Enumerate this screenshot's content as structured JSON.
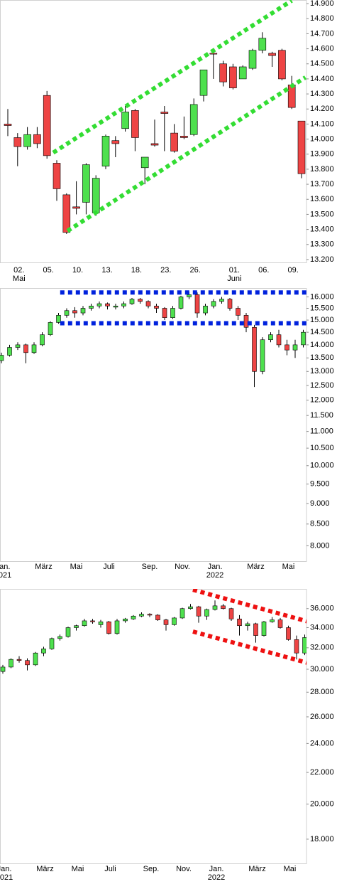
{
  "chart_data": [
    {
      "type": "candlestick",
      "log": false,
      "up_color": "#4ee04e",
      "down_color": "#ee4444",
      "categories": [
        null,
        "02.",
        null,
        null,
        "05.",
        null,
        null,
        "10.",
        null,
        null,
        "13.",
        null,
        null,
        "18.",
        null,
        null,
        "23.",
        null,
        null,
        "26.",
        null,
        null,
        null,
        "01.",
        null,
        null,
        "06.",
        null,
        null,
        "09.",
        null
      ],
      "sublabels": [
        {
          "index": 1,
          "label": "Mai"
        },
        {
          "index": 23,
          "label": "Juni"
        }
      ],
      "open": [
        14100,
        14010,
        13950,
        14030,
        14290,
        13840,
        13630,
        13550,
        13580,
        13510,
        13820,
        13990,
        14070,
        14190,
        13810,
        13970,
        14180,
        14040,
        14020,
        14030,
        14290,
        14570,
        14500,
        14480,
        14400,
        14470,
        14590,
        14570,
        14590,
        14360,
        14120
      ],
      "high": [
        14200,
        14040,
        14080,
        14080,
        14320,
        13860,
        13640,
        13720,
        13840,
        13760,
        14030,
        14020,
        14220,
        14200,
        13880,
        14130,
        14220,
        14100,
        14150,
        14270,
        14460,
        14580,
        14520,
        14500,
        14490,
        14600,
        14710,
        14580,
        14600,
        14420,
        14120
      ],
      "low": [
        14020,
        13820,
        13930,
        13940,
        13870,
        13590,
        13370,
        13500,
        13500,
        13490,
        13800,
        13880,
        14050,
        13920,
        13700,
        13950,
        13920,
        13910,
        14000,
        14020,
        14250,
        14400,
        14350,
        14330,
        14400,
        14460,
        14570,
        14480,
        14390,
        14200,
        13740
      ],
      "close": [
        14090,
        13950,
        14030,
        13970,
        13890,
        13670,
        13380,
        13540,
        13830,
        13740,
        14020,
        13970,
        14180,
        14010,
        13880,
        13960,
        14170,
        13920,
        14010,
        14230,
        14460,
        14565,
        14380,
        14340,
        14480,
        14590,
        14670,
        14555,
        14400,
        14210,
        13770
      ],
      "ylim": [
        13176,
        14924
      ],
      "yticks": [
        {
          "value": 13200,
          "label": "13.200"
        },
        {
          "value": 13300,
          "label": "13.300"
        },
        {
          "value": 13400,
          "label": "13.400"
        },
        {
          "value": 13500,
          "label": "13.500"
        },
        {
          "value": 13600,
          "label": "13.600"
        },
        {
          "value": 13700,
          "label": "13.700"
        },
        {
          "value": 13800,
          "label": "13.800"
        },
        {
          "value": 13900,
          "label": "13.900"
        },
        {
          "value": 14000,
          "label": "14.000"
        },
        {
          "value": 14100,
          "label": "14.100"
        },
        {
          "value": 14200,
          "label": "14.200"
        },
        {
          "value": 14300,
          "label": "14.300"
        },
        {
          "value": 14400,
          "label": "14.400"
        },
        {
          "value": 14500,
          "label": "14.500"
        },
        {
          "value": 14600,
          "label": "14.600"
        },
        {
          "value": 14700,
          "label": "14.700"
        },
        {
          "value": 14800,
          "label": "14.800"
        },
        {
          "value": 14900,
          "label": "14.900"
        }
      ],
      "channel": {
        "color": "#33dd33",
        "lines": [
          {
            "x": [
              4.64,
              29.0
            ],
            "y": [
              13910,
              14920
            ]
          },
          {
            "x": [
              6.1,
              30.4
            ],
            "y": [
              13390,
              14410
            ]
          }
        ]
      }
    },
    {
      "type": "candlestick",
      "log": true,
      "up_color": "#4ee04e",
      "down_color": "#ee4444",
      "categories": [
        "Jan.",
        null,
        null,
        null,
        null,
        "März",
        null,
        null,
        null,
        "Mai",
        null,
        null,
        null,
        "Juli",
        null,
        null,
        null,
        null,
        "Sep.",
        null,
        null,
        null,
        "Nov.",
        null,
        null,
        null,
        "Jan.",
        null,
        null,
        null,
        null,
        "März",
        null,
        null,
        null,
        "Mai",
        null,
        null
      ],
      "sublabels": [
        {
          "index": 0,
          "label": "2021"
        },
        {
          "index": 26,
          "label": "2022"
        }
      ],
      "open": [
        13400,
        13600,
        13900,
        14000,
        13700,
        14000,
        14400,
        14900,
        15200,
        15400,
        15300,
        15500,
        15600,
        15700,
        15550,
        15600,
        15700,
        15900,
        15800,
        15600,
        15500,
        15100,
        15500,
        16000,
        16100,
        15300,
        15600,
        15800,
        15900,
        15500,
        15200,
        14700,
        13000,
        14200,
        14400,
        14000,
        13800,
        14000
      ],
      "high": [
        13700,
        14000,
        14100,
        14050,
        14100,
        14500,
        14950,
        15300,
        15500,
        15550,
        15600,
        15700,
        15800,
        15750,
        15700,
        15800,
        15950,
        15950,
        15850,
        15700,
        15550,
        15600,
        16050,
        16200,
        16200,
        15700,
        15900,
        16000,
        15950,
        15600,
        15300,
        14800,
        14300,
        14500,
        14600,
        14200,
        14200,
        14600
      ],
      "low": [
        13300,
        13550,
        13800,
        13300,
        13650,
        13950,
        14350,
        14850,
        15100,
        15100,
        15200,
        15400,
        15500,
        15450,
        15450,
        15500,
        15650,
        15700,
        15500,
        15300,
        15000,
        15050,
        15450,
        15900,
        15100,
        15200,
        15500,
        15700,
        15400,
        15000,
        14500,
        12450,
        12900,
        14100,
        13900,
        13600,
        13500,
        13900
      ],
      "close": [
        13600,
        13900,
        14000,
        13700,
        14000,
        14400,
        14900,
        15200,
        15400,
        15300,
        15500,
        15600,
        15700,
        15600,
        15600,
        15700,
        15900,
        15800,
        15600,
        15500,
        15100,
        15500,
        16000,
        16100,
        15300,
        15600,
        15800,
        15900,
        15500,
        15200,
        14700,
        13000,
        14200,
        14400,
        14000,
        13800,
        14000,
        14500
      ],
      "ylim": [
        7650,
        16400
      ],
      "yticks": [
        {
          "value": 8000,
          "label": "8.000"
        },
        {
          "value": 8500,
          "label": "8.500"
        },
        {
          "value": 9000,
          "label": "9.000"
        },
        {
          "value": 9500,
          "label": "9.500"
        },
        {
          "value": 10000,
          "label": "10.000"
        },
        {
          "value": 10500,
          "label": "10.500"
        },
        {
          "value": 11000,
          "label": "11.000"
        },
        {
          "value": 11500,
          "label": "11.500"
        },
        {
          "value": 12000,
          "label": "12.000"
        },
        {
          "value": 12500,
          "label": "12.500"
        },
        {
          "value": 13000,
          "label": "13.000"
        },
        {
          "value": 13500,
          "label": "13.500"
        },
        {
          "value": 14000,
          "label": "14.000"
        },
        {
          "value": 14500,
          "label": "14.500"
        },
        {
          "value": 15000,
          "label": "15.000"
        },
        {
          "value": 15500,
          "label": "15.500"
        },
        {
          "value": 16000,
          "label": "16.000"
        }
      ],
      "channel": {
        "color": "#0022dd",
        "lines": [
          {
            "x": [
              7.2,
              37.4
            ],
            "y": [
              16200,
              16200
            ]
          },
          {
            "x": [
              7.2,
              37.4
            ],
            "y": [
              14870,
              14870
            ]
          }
        ]
      }
    },
    {
      "type": "candlestick",
      "log": true,
      "up_color": "#4ee04e",
      "down_color": "#ee4444",
      "categories": [
        "Jan.",
        null,
        null,
        null,
        null,
        "März",
        null,
        null,
        null,
        "Mai",
        null,
        null,
        null,
        "Juli",
        null,
        null,
        null,
        null,
        "Sep.",
        null,
        null,
        null,
        "Nov.",
        null,
        null,
        null,
        "Jan.",
        null,
        null,
        null,
        null,
        "März",
        null,
        null,
        null,
        "Mai",
        null,
        null
      ],
      "sublabels": [
        {
          "index": 0,
          "label": "2021"
        },
        {
          "index": 26,
          "label": "2022"
        }
      ],
      "open": [
        29800,
        30200,
        30900,
        30800,
        30400,
        31500,
        31900,
        32900,
        33100,
        34000,
        34200,
        34700,
        34300,
        34600,
        33400,
        34700,
        34900,
        35200,
        35400,
        35300,
        34800,
        34300,
        35000,
        36000,
        36200,
        35200,
        35900,
        36300,
        36000,
        34900,
        34200,
        34400,
        33200,
        34600,
        34800,
        34000,
        32800,
        31500
      ],
      "high": [
        30400,
        31000,
        31200,
        31000,
        31600,
        32100,
        33000,
        33300,
        34100,
        34300,
        34900,
        34900,
        34800,
        34700,
        34900,
        35000,
        35300,
        35600,
        35500,
        35400,
        34900,
        35100,
        36100,
        36500,
        36300,
        36000,
        36900,
        36500,
        36100,
        35300,
        34600,
        34500,
        34700,
        35100,
        35000,
        34200,
        33200,
        33300
      ],
      "low": [
        29600,
        30100,
        30600,
        29900,
        30300,
        31200,
        31800,
        32700,
        33000,
        33700,
        34100,
        34400,
        34000,
        33300,
        33300,
        34500,
        34800,
        35100,
        35100,
        34700,
        33700,
        34200,
        34900,
        35900,
        34500,
        34800,
        35800,
        35900,
        34700,
        33200,
        33700,
        32500,
        33100,
        34500,
        33900,
        32700,
        30900,
        31300
      ],
      "close": [
        30200,
        30900,
        30800,
        30400,
        31500,
        31900,
        32900,
        33100,
        34000,
        34200,
        34700,
        34600,
        34600,
        33400,
        34700,
        34900,
        35200,
        35400,
        35300,
        34800,
        34300,
        35000,
        36000,
        36200,
        35200,
        35900,
        36300,
        36000,
        34900,
        34200,
        34400,
        33200,
        34600,
        34800,
        34000,
        32800,
        31500,
        33000
      ],
      "ylim": [
        16700,
        38200
      ],
      "yticks": [
        {
          "value": 18000,
          "label": "18.000"
        },
        {
          "value": 20000,
          "label": "20.000"
        },
        {
          "value": 22000,
          "label": "22.000"
        },
        {
          "value": 24000,
          "label": "24.000"
        },
        {
          "value": 26000,
          "label": "26.000"
        },
        {
          "value": 28000,
          "label": "28.000"
        },
        {
          "value": 30000,
          "label": "30.000"
        },
        {
          "value": 32000,
          "label": "32.000"
        },
        {
          "value": 34000,
          "label": "34.000"
        },
        {
          "value": 36000,
          "label": "36.000"
        }
      ],
      "channel": {
        "color": "#ee1111",
        "lines": [
          {
            "x": [
              23.3,
              37.5
            ],
            "y": [
              38100,
              34600
            ]
          },
          {
            "x": [
              23.3,
              37.5
            ],
            "y": [
              33600,
              30550
            ]
          }
        ]
      }
    }
  ]
}
